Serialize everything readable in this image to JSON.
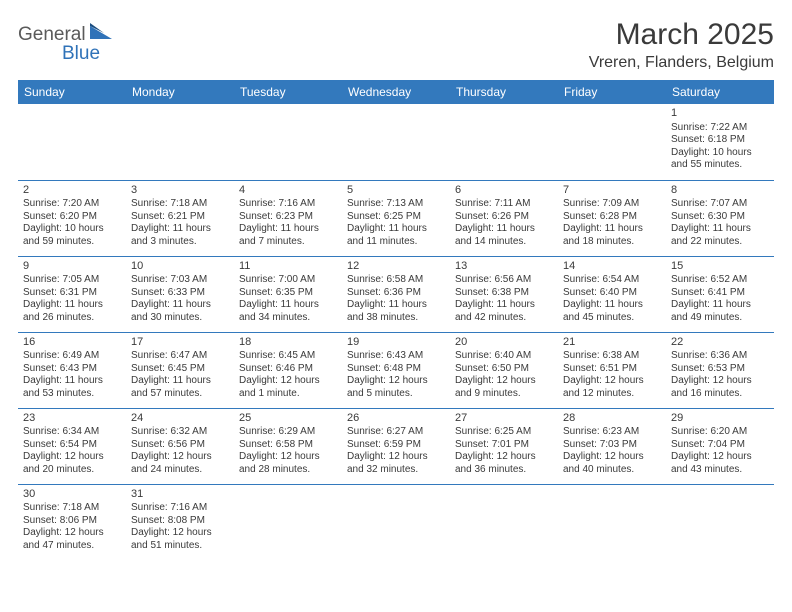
{
  "brand": {
    "text1": "General",
    "text2": "Blue",
    "shape_color": "#2f72b8"
  },
  "title": "March 2025",
  "location": "Vreren, Flanders, Belgium",
  "weekdays": [
    "Sunday",
    "Monday",
    "Tuesday",
    "Wednesday",
    "Thursday",
    "Friday",
    "Saturday"
  ],
  "colors": {
    "header_bg": "#3379bd",
    "header_text": "#ffffff",
    "border": "#3379bd",
    "text": "#3a3a3a"
  },
  "weeks": [
    [
      null,
      null,
      null,
      null,
      null,
      null,
      {
        "day": "1",
        "sunrise": "Sunrise: 7:22 AM",
        "sunset": "Sunset: 6:18 PM",
        "daylight": "Daylight: 10 hours and 55 minutes."
      }
    ],
    [
      {
        "day": "2",
        "sunrise": "Sunrise: 7:20 AM",
        "sunset": "Sunset: 6:20 PM",
        "daylight": "Daylight: 10 hours and 59 minutes."
      },
      {
        "day": "3",
        "sunrise": "Sunrise: 7:18 AM",
        "sunset": "Sunset: 6:21 PM",
        "daylight": "Daylight: 11 hours and 3 minutes."
      },
      {
        "day": "4",
        "sunrise": "Sunrise: 7:16 AM",
        "sunset": "Sunset: 6:23 PM",
        "daylight": "Daylight: 11 hours and 7 minutes."
      },
      {
        "day": "5",
        "sunrise": "Sunrise: 7:13 AM",
        "sunset": "Sunset: 6:25 PM",
        "daylight": "Daylight: 11 hours and 11 minutes."
      },
      {
        "day": "6",
        "sunrise": "Sunrise: 7:11 AM",
        "sunset": "Sunset: 6:26 PM",
        "daylight": "Daylight: 11 hours and 14 minutes."
      },
      {
        "day": "7",
        "sunrise": "Sunrise: 7:09 AM",
        "sunset": "Sunset: 6:28 PM",
        "daylight": "Daylight: 11 hours and 18 minutes."
      },
      {
        "day": "8",
        "sunrise": "Sunrise: 7:07 AM",
        "sunset": "Sunset: 6:30 PM",
        "daylight": "Daylight: 11 hours and 22 minutes."
      }
    ],
    [
      {
        "day": "9",
        "sunrise": "Sunrise: 7:05 AM",
        "sunset": "Sunset: 6:31 PM",
        "daylight": "Daylight: 11 hours and 26 minutes."
      },
      {
        "day": "10",
        "sunrise": "Sunrise: 7:03 AM",
        "sunset": "Sunset: 6:33 PM",
        "daylight": "Daylight: 11 hours and 30 minutes."
      },
      {
        "day": "11",
        "sunrise": "Sunrise: 7:00 AM",
        "sunset": "Sunset: 6:35 PM",
        "daylight": "Daylight: 11 hours and 34 minutes."
      },
      {
        "day": "12",
        "sunrise": "Sunrise: 6:58 AM",
        "sunset": "Sunset: 6:36 PM",
        "daylight": "Daylight: 11 hours and 38 minutes."
      },
      {
        "day": "13",
        "sunrise": "Sunrise: 6:56 AM",
        "sunset": "Sunset: 6:38 PM",
        "daylight": "Daylight: 11 hours and 42 minutes."
      },
      {
        "day": "14",
        "sunrise": "Sunrise: 6:54 AM",
        "sunset": "Sunset: 6:40 PM",
        "daylight": "Daylight: 11 hours and 45 minutes."
      },
      {
        "day": "15",
        "sunrise": "Sunrise: 6:52 AM",
        "sunset": "Sunset: 6:41 PM",
        "daylight": "Daylight: 11 hours and 49 minutes."
      }
    ],
    [
      {
        "day": "16",
        "sunrise": "Sunrise: 6:49 AM",
        "sunset": "Sunset: 6:43 PM",
        "daylight": "Daylight: 11 hours and 53 minutes."
      },
      {
        "day": "17",
        "sunrise": "Sunrise: 6:47 AM",
        "sunset": "Sunset: 6:45 PM",
        "daylight": "Daylight: 11 hours and 57 minutes."
      },
      {
        "day": "18",
        "sunrise": "Sunrise: 6:45 AM",
        "sunset": "Sunset: 6:46 PM",
        "daylight": "Daylight: 12 hours and 1 minute."
      },
      {
        "day": "19",
        "sunrise": "Sunrise: 6:43 AM",
        "sunset": "Sunset: 6:48 PM",
        "daylight": "Daylight: 12 hours and 5 minutes."
      },
      {
        "day": "20",
        "sunrise": "Sunrise: 6:40 AM",
        "sunset": "Sunset: 6:50 PM",
        "daylight": "Daylight: 12 hours and 9 minutes."
      },
      {
        "day": "21",
        "sunrise": "Sunrise: 6:38 AM",
        "sunset": "Sunset: 6:51 PM",
        "daylight": "Daylight: 12 hours and 12 minutes."
      },
      {
        "day": "22",
        "sunrise": "Sunrise: 6:36 AM",
        "sunset": "Sunset: 6:53 PM",
        "daylight": "Daylight: 12 hours and 16 minutes."
      }
    ],
    [
      {
        "day": "23",
        "sunrise": "Sunrise: 6:34 AM",
        "sunset": "Sunset: 6:54 PM",
        "daylight": "Daylight: 12 hours and 20 minutes."
      },
      {
        "day": "24",
        "sunrise": "Sunrise: 6:32 AM",
        "sunset": "Sunset: 6:56 PM",
        "daylight": "Daylight: 12 hours and 24 minutes."
      },
      {
        "day": "25",
        "sunrise": "Sunrise: 6:29 AM",
        "sunset": "Sunset: 6:58 PM",
        "daylight": "Daylight: 12 hours and 28 minutes."
      },
      {
        "day": "26",
        "sunrise": "Sunrise: 6:27 AM",
        "sunset": "Sunset: 6:59 PM",
        "daylight": "Daylight: 12 hours and 32 minutes."
      },
      {
        "day": "27",
        "sunrise": "Sunrise: 6:25 AM",
        "sunset": "Sunset: 7:01 PM",
        "daylight": "Daylight: 12 hours and 36 minutes."
      },
      {
        "day": "28",
        "sunrise": "Sunrise: 6:23 AM",
        "sunset": "Sunset: 7:03 PM",
        "daylight": "Daylight: 12 hours and 40 minutes."
      },
      {
        "day": "29",
        "sunrise": "Sunrise: 6:20 AM",
        "sunset": "Sunset: 7:04 PM",
        "daylight": "Daylight: 12 hours and 43 minutes."
      }
    ],
    [
      {
        "day": "30",
        "sunrise": "Sunrise: 7:18 AM",
        "sunset": "Sunset: 8:06 PM",
        "daylight": "Daylight: 12 hours and 47 minutes."
      },
      {
        "day": "31",
        "sunrise": "Sunrise: 7:16 AM",
        "sunset": "Sunset: 8:08 PM",
        "daylight": "Daylight: 12 hours and 51 minutes."
      },
      null,
      null,
      null,
      null,
      null
    ]
  ]
}
